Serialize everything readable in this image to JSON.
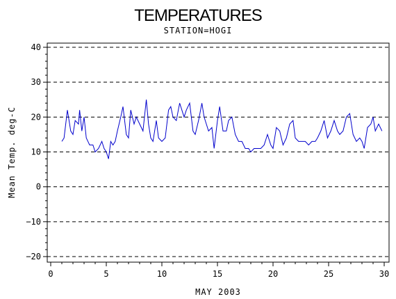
{
  "chart_data": {
    "type": "line",
    "title": "TEMPERATURES",
    "subtitle": "STATION=HOGI",
    "xlabel": "MAY 2003",
    "ylabel": "Mean Temp. deg-C",
    "xlim": [
      0,
      30
    ],
    "ylim": [
      -20,
      40
    ],
    "x_ticks": [
      0,
      5,
      10,
      15,
      20,
      25,
      30
    ],
    "y_ticks": [
      -20,
      -10,
      0,
      10,
      20,
      30,
      40
    ],
    "grid": "horizontal dashed at major y ticks",
    "line_color": "#0000cc",
    "series": [
      {
        "x": [
          1.0,
          1.2,
          1.5,
          1.8,
          2.0,
          2.2,
          2.5,
          2.6,
          2.8,
          3.0,
          3.2,
          3.5,
          3.8,
          4.0,
          4.3,
          4.6,
          4.8,
          5.0,
          5.2,
          5.4,
          5.6,
          5.8,
          6.0,
          6.3,
          6.5,
          6.8,
          7.0,
          7.2,
          7.5,
          7.7,
          8.0,
          8.3,
          8.6,
          8.8,
          9.0,
          9.2,
          9.5,
          9.7,
          10.0,
          10.3,
          10.6,
          10.8,
          11.0,
          11.3,
          11.6,
          11.8,
          12.0,
          12.2,
          12.5,
          12.8,
          13.0,
          13.3,
          13.6,
          13.8,
          14.0,
          14.2,
          14.5,
          14.7,
          15.0,
          15.2,
          15.5,
          15.8,
          16.0,
          16.3,
          16.6,
          16.9,
          17.2,
          17.5,
          17.8,
          18.0,
          18.3,
          18.6,
          18.9,
          19.2,
          19.5,
          19.8,
          20.0,
          20.3,
          20.6,
          20.9,
          21.2,
          21.5,
          21.8,
          22.0,
          22.3,
          22.6,
          22.9,
          23.2,
          23.5,
          23.8,
          24.0,
          24.3,
          24.6,
          24.9,
          25.2,
          25.5,
          25.8,
          26.0,
          26.3,
          26.6,
          26.9,
          27.2,
          27.5,
          27.8,
          28.0,
          28.2,
          28.5,
          28.8,
          29.0,
          29.2,
          29.5,
          29.8
        ],
        "y": [
          13,
          14,
          22,
          16,
          15,
          19,
          18,
          22,
          16,
          20,
          14,
          12,
          12,
          10,
          11,
          13,
          11,
          10,
          8,
          13,
          12,
          13,
          16,
          20,
          23,
          15,
          14,
          22,
          18,
          20,
          18,
          16,
          25,
          18,
          14,
          13,
          19,
          14,
          13,
          14,
          22,
          23,
          20,
          19,
          24,
          22,
          20,
          22,
          24,
          16,
          15,
          19,
          24,
          20,
          18,
          16,
          17,
          11,
          19,
          23,
          16,
          16,
          19,
          20,
          15,
          13,
          13,
          11,
          11,
          10,
          11,
          11,
          11,
          12,
          15,
          12,
          11,
          17,
          16,
          12,
          14,
          18,
          19,
          14,
          13,
          13,
          13,
          12,
          13,
          13,
          14,
          16,
          19,
          14,
          16,
          19,
          16,
          15,
          16,
          20,
          21,
          15,
          13,
          14,
          13,
          11,
          17,
          18,
          20,
          16,
          18,
          16
        ]
      }
    ]
  }
}
